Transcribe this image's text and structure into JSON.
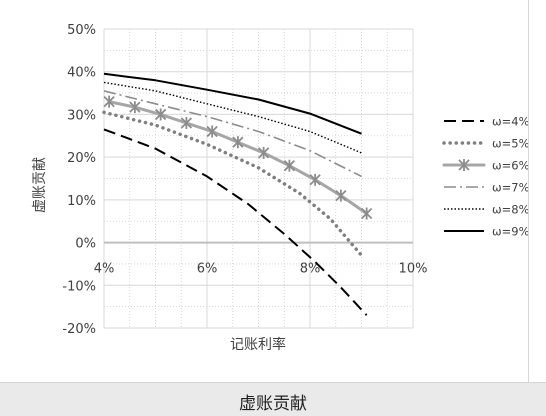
{
  "caption": "虚账贡献",
  "chart_data": {
    "type": "line",
    "xlabel": "记账利率",
    "ylabel": "虚账贡献",
    "xlim": [
      4,
      10
    ],
    "ylim": [
      -20,
      50
    ],
    "x_ticks": [
      {
        "value": 4,
        "label": "4%"
      },
      {
        "value": 6,
        "label": "6%"
      },
      {
        "value": 8,
        "label": "8%"
      },
      {
        "value": 10,
        "label": "10%"
      }
    ],
    "y_ticks": [
      {
        "value": 50,
        "label": "50%"
      },
      {
        "value": 40,
        "label": "40%"
      },
      {
        "value": 30,
        "label": "30%"
      },
      {
        "value": 20,
        "label": "20%"
      },
      {
        "value": 10,
        "label": "10%"
      },
      {
        "value": 0,
        "label": "0%"
      },
      {
        "value": -10,
        "label": "-10%"
      },
      {
        "value": -20,
        "label": "-20%"
      }
    ],
    "grid": true,
    "legend_position": "right",
    "series": [
      {
        "name": "ω=4%",
        "style": "dash",
        "color": "#000000",
        "x": [
          4.0,
          5.0,
          6.0,
          6.8,
          7.5,
          8.1,
          8.6,
          9.1
        ],
        "y": [
          26.5,
          22.0,
          15.5,
          9.0,
          2.0,
          -4.5,
          -10.5,
          -17.0
        ]
      },
      {
        "name": "ω=5%",
        "style": "round-dot",
        "color": "#7f7f7f",
        "x": [
          4.0,
          5.0,
          6.0,
          7.0,
          7.8,
          8.4,
          9.0
        ],
        "y": [
          30.5,
          27.5,
          23.0,
          17.5,
          11.5,
          5.5,
          -3.0
        ]
      },
      {
        "name": "ω=6%",
        "style": "marker-x",
        "color": "#a6a6a6",
        "x": [
          4.1,
          4.6,
          5.1,
          5.6,
          6.1,
          6.6,
          7.1,
          7.6,
          8.1,
          8.6,
          9.1
        ],
        "y": [
          33.0,
          31.7,
          30.0,
          28.0,
          26.0,
          23.5,
          21.0,
          18.0,
          14.7,
          11.0,
          6.8
        ]
      },
      {
        "name": "ω=7%",
        "style": "dash-dot",
        "color": "#8c8c8c",
        "x": [
          4.0,
          5.0,
          6.0,
          7.0,
          8.0,
          9.0
        ],
        "y": [
          35.5,
          32.5,
          29.5,
          26.0,
          21.5,
          15.5
        ]
      },
      {
        "name": "ω=8%",
        "style": "square-dot",
        "color": "#000000",
        "x": [
          4.0,
          5.0,
          6.0,
          7.0,
          8.0,
          9.0
        ],
        "y": [
          37.5,
          35.5,
          32.5,
          29.5,
          26.0,
          21.0
        ]
      },
      {
        "name": "ω=9%",
        "style": "solid",
        "color": "#000000",
        "x": [
          4.0,
          5.0,
          6.0,
          7.0,
          8.0,
          9.0
        ],
        "y": [
          39.5,
          38.0,
          35.8,
          33.5,
          30.2,
          25.5
        ]
      }
    ]
  }
}
